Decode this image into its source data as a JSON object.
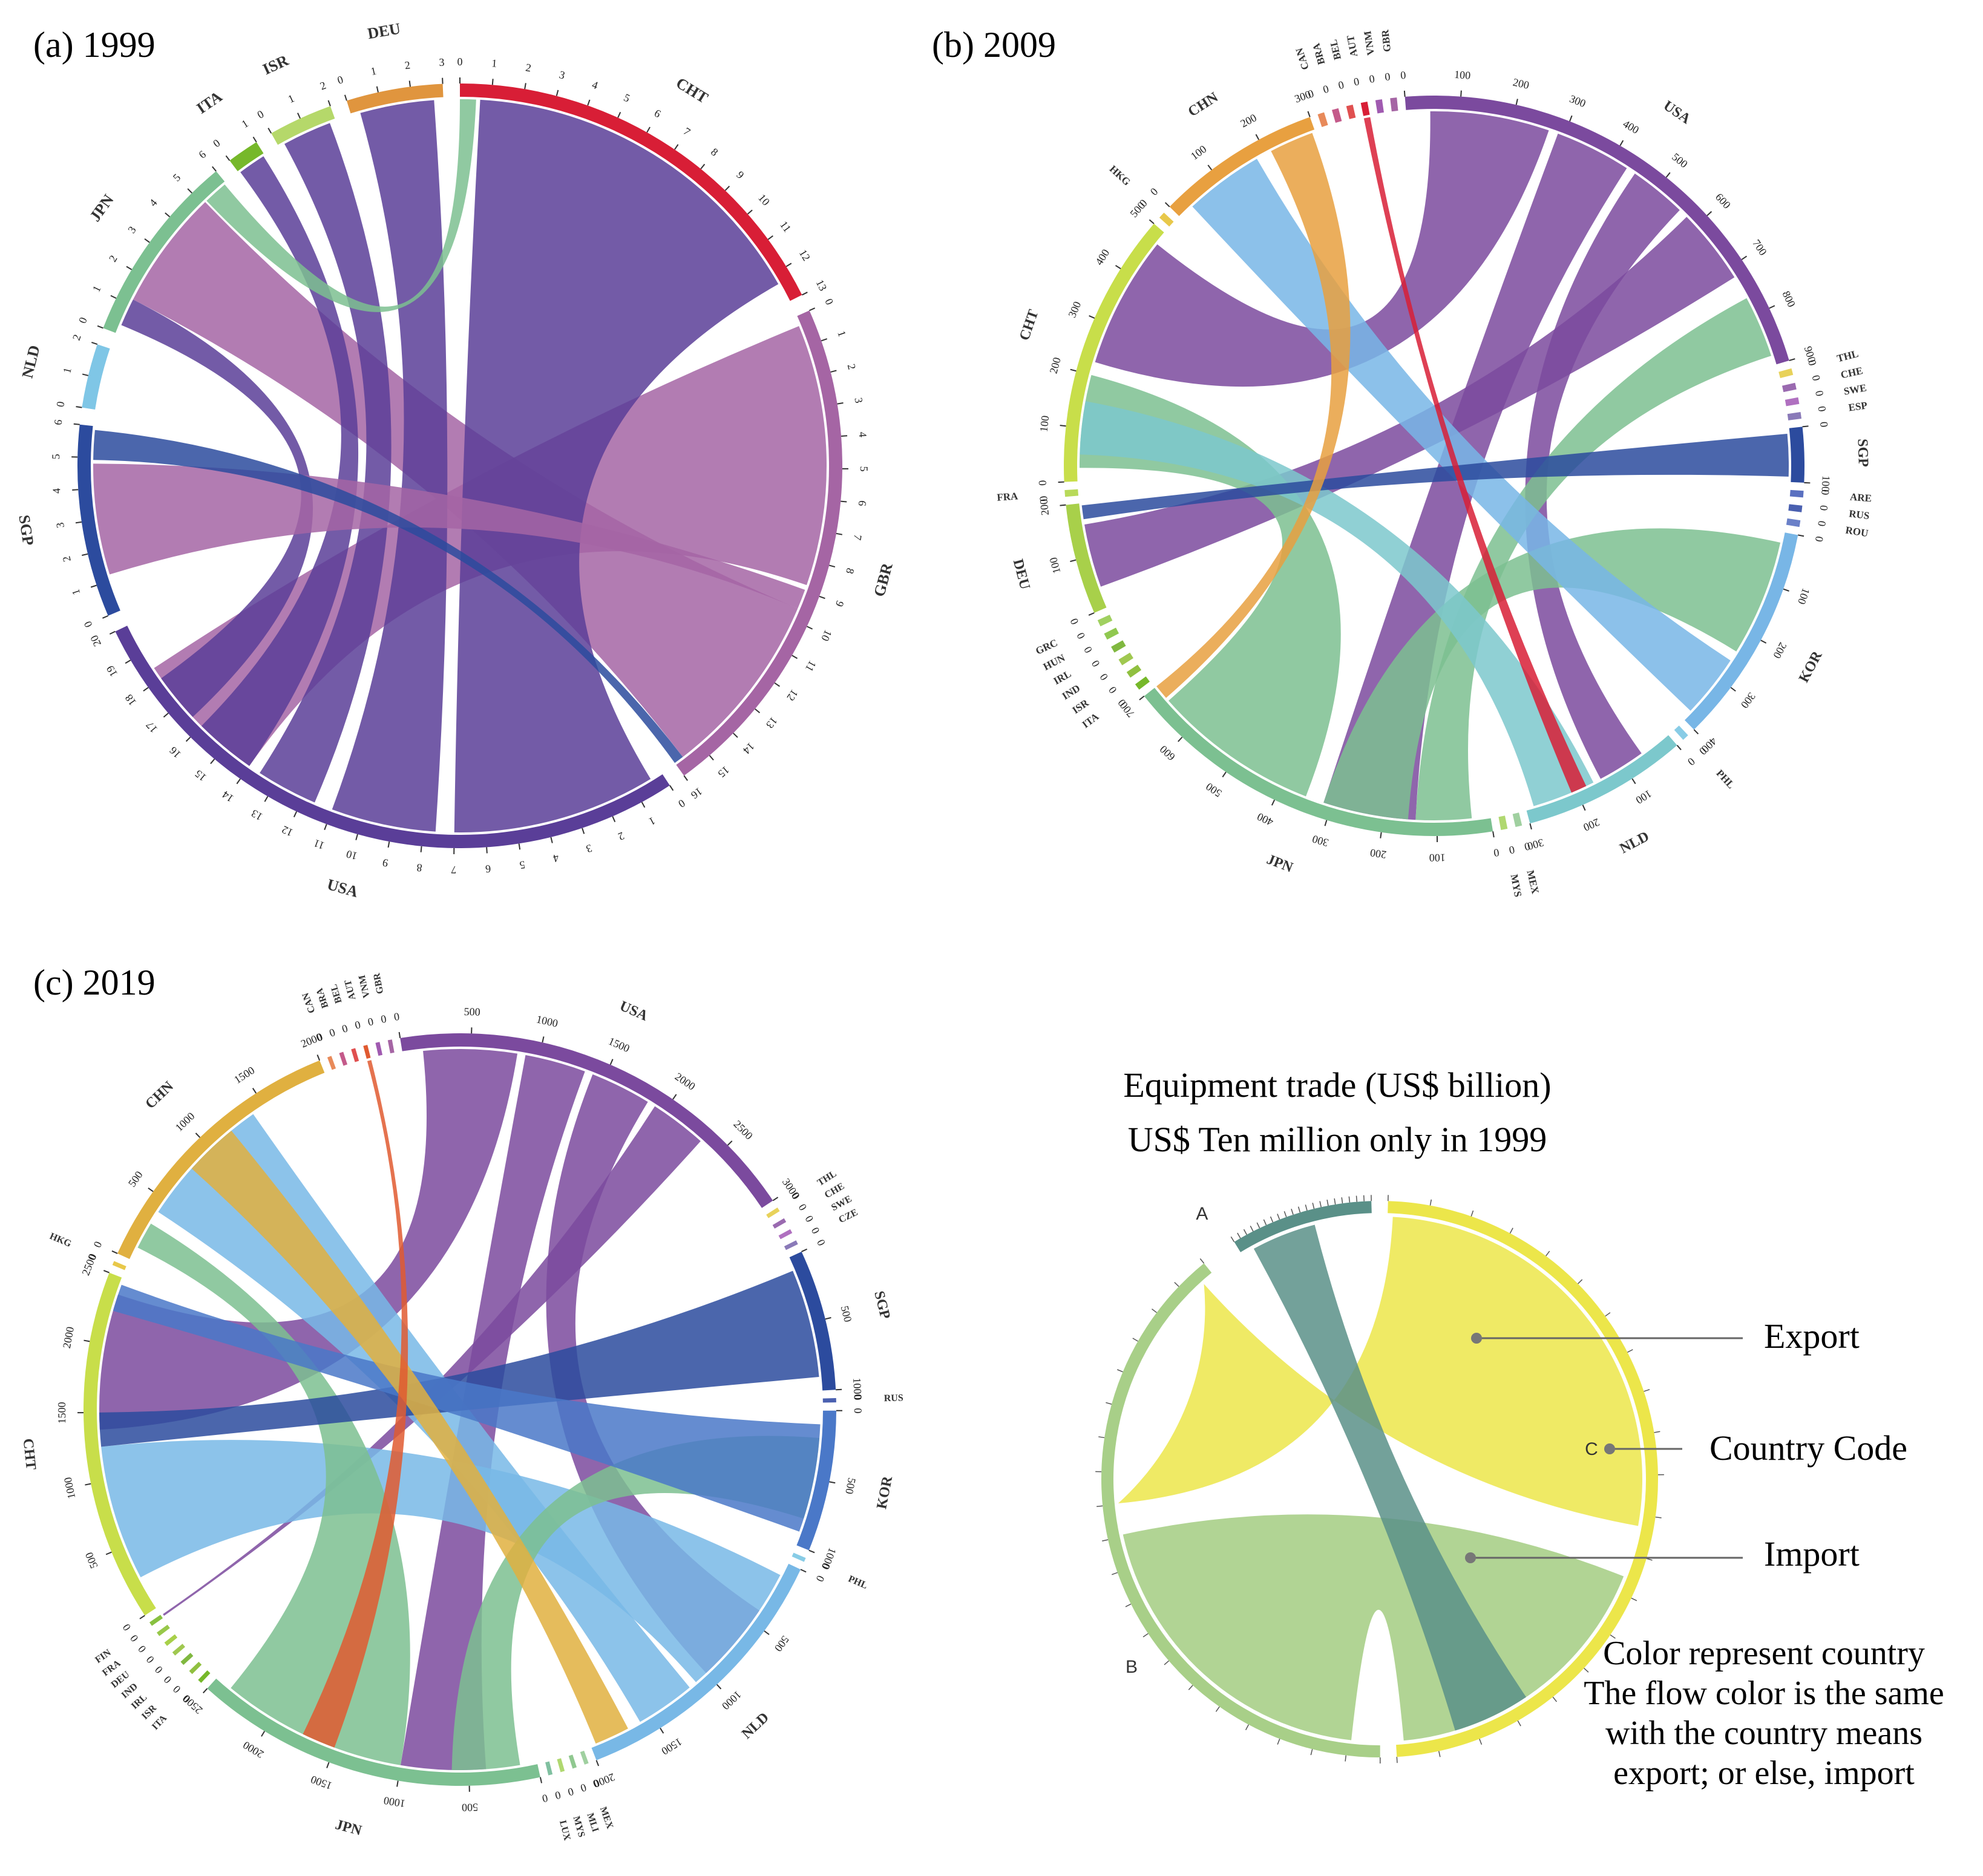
{
  "panels": [
    {
      "label": "(a) 1999",
      "segments": [
        {
          "code": "CHT",
          "color": "#d81e36",
          "max": 13,
          "step": 1
        },
        {
          "code": "GBR",
          "color": "#a565a4",
          "max": 16,
          "step": 1
        },
        {
          "code": "USA",
          "color": "#5a3e98",
          "max": 20,
          "step": 1
        },
        {
          "code": "SGP",
          "color": "#2c4b9e",
          "max": 6,
          "step": 1
        },
        {
          "code": "NLD",
          "color": "#7fc6e6",
          "max": 2,
          "step": 1
        },
        {
          "code": "JPN",
          "color": "#7cc091",
          "max": 6,
          "step": 1
        },
        {
          "code": "ITA",
          "color": "#76b82a",
          "max": 1,
          "step": 1
        },
        {
          "code": "ISR",
          "color": "#b5d86a",
          "max": 2,
          "step": 1
        },
        {
          "code": "DEU",
          "color": "#e0953e",
          "max": 3,
          "step": 1
        }
      ]
    },
    {
      "label": "(b) 2009",
      "segments": [
        {
          "code": "CAN",
          "color": "#e88a5a",
          "max": 0,
          "step": 1
        },
        {
          "code": "BRA",
          "color": "#c45a8a",
          "max": 0,
          "step": 1
        },
        {
          "code": "BEL",
          "color": "#e05050",
          "max": 0,
          "step": 1
        },
        {
          "code": "AUT",
          "color": "#d81e36",
          "max": 0,
          "step": 1
        },
        {
          "code": "VNM",
          "color": "#a05ab0",
          "max": 0,
          "step": 1
        },
        {
          "code": "GBR",
          "color": "#a565a4",
          "max": 0,
          "step": 1
        },
        {
          "code": "USA",
          "color": "#7b4a9e",
          "max": 900,
          "step": 100
        },
        {
          "code": "THL",
          "color": "#e8d25a",
          "max": 0,
          "step": 1
        },
        {
          "code": "CHE",
          "color": "#9a6ab0",
          "max": 0,
          "step": 1
        },
        {
          "code": "SWE",
          "color": "#b070c0",
          "max": 0,
          "step": 1
        },
        {
          "code": "ESP",
          "color": "#8a7ab8",
          "max": 0,
          "step": 1
        },
        {
          "code": "SGP",
          "color": "#2c4b9e",
          "max": 100,
          "step": 100
        },
        {
          "code": "ARE",
          "color": "#5a70c0",
          "max": 0,
          "step": 1
        },
        {
          "code": "RUS",
          "color": "#4a60b0",
          "max": 0,
          "step": 1
        },
        {
          "code": "ROU",
          "color": "#6a80c8",
          "max": 0,
          "step": 1
        },
        {
          "code": "KOR",
          "color": "#78b6e6",
          "max": 400,
          "step": 100
        },
        {
          "code": "PHL",
          "color": "#88cce6",
          "max": 0,
          "step": 1
        },
        {
          "code": "NLD",
          "color": "#7cc8cc",
          "max": 300,
          "step": 100
        },
        {
          "code": "MEX",
          "color": "#a0d0a0",
          "max": 0,
          "step": 1
        },
        {
          "code": "MYS",
          "color": "#b0d870",
          "max": 0,
          "step": 1
        },
        {
          "code": "JPN",
          "color": "#7cc091",
          "max": 700,
          "step": 100
        },
        {
          "code": "ITA",
          "color": "#76b82a",
          "max": 0,
          "step": 1
        },
        {
          "code": "ISR",
          "color": "#90c040",
          "max": 0,
          "step": 1
        },
        {
          "code": "IND",
          "color": "#a0c850",
          "max": 0,
          "step": 1
        },
        {
          "code": "IRL",
          "color": "#80b840",
          "max": 0,
          "step": 1
        },
        {
          "code": "HUN",
          "color": "#90c850",
          "max": 0,
          "step": 1
        },
        {
          "code": "GRC",
          "color": "#a0d060",
          "max": 0,
          "step": 1
        },
        {
          "code": "DEU",
          "color": "#a8d04a",
          "max": 200,
          "step": 100
        },
        {
          "code": "FRA",
          "color": "#b8da5a",
          "max": 0,
          "step": 1
        },
        {
          "code": "CHT",
          "color": "#c8de4a",
          "max": 500,
          "step": 100
        },
        {
          "code": "HKG",
          "color": "#e8c84a",
          "max": 0,
          "step": 1
        },
        {
          "code": "CHN",
          "color": "#e8a040",
          "max": 300,
          "step": 100
        }
      ]
    },
    {
      "label": "(c) 2019",
      "segments": [
        {
          "code": "CAN",
          "color": "#e88a5a",
          "max": 0,
          "step": 1
        },
        {
          "code": "BRA",
          "color": "#c45a8a",
          "max": 0,
          "step": 1
        },
        {
          "code": "BEL",
          "color": "#e05050",
          "max": 0,
          "step": 1
        },
        {
          "code": "AUT",
          "color": "#e05a30",
          "max": 0,
          "step": 1
        },
        {
          "code": "VNM",
          "color": "#a05ab0",
          "max": 0,
          "step": 1
        },
        {
          "code": "GBR",
          "color": "#a565a4",
          "max": 0,
          "step": 1
        },
        {
          "code": "USA",
          "color": "#7b4a9e",
          "max": 3000,
          "step": 500
        },
        {
          "code": "THL",
          "color": "#e8d25a",
          "max": 0,
          "step": 1
        },
        {
          "code": "CHE",
          "color": "#9a6ab0",
          "max": 0,
          "step": 1
        },
        {
          "code": "SWE",
          "color": "#b070c0",
          "max": 0,
          "step": 1
        },
        {
          "code": "CZE",
          "color": "#8a7ab8",
          "max": 0,
          "step": 1
        },
        {
          "code": "SGP",
          "color": "#2c4b9e",
          "max": 1000,
          "step": 500
        },
        {
          "code": "RUS",
          "color": "#4a60b0",
          "max": 0,
          "step": 1
        },
        {
          "code": "KOR",
          "color": "#4a78c8",
          "max": 1000,
          "step": 500
        },
        {
          "code": "PHL",
          "color": "#88cce6",
          "max": 0,
          "step": 1
        },
        {
          "code": "NLD",
          "color": "#78b8e6",
          "max": 2000,
          "step": 500
        },
        {
          "code": "MEX",
          "color": "#a0d0a0",
          "max": 0,
          "step": 1
        },
        {
          "code": "MLI",
          "color": "#90c890",
          "max": 0,
          "step": 1
        },
        {
          "code": "MYS",
          "color": "#b0d870",
          "max": 0,
          "step": 1
        },
        {
          "code": "LUX",
          "color": "#80c0a0",
          "max": 0,
          "step": 1
        },
        {
          "code": "JPN",
          "color": "#7cc091",
          "max": 2500,
          "step": 500
        },
        {
          "code": "ITA",
          "color": "#76b82a",
          "max": 0,
          "step": 1
        },
        {
          "code": "ISR",
          "color": "#90c040",
          "max": 0,
          "step": 1
        },
        {
          "code": "IRL",
          "color": "#80b840",
          "max": 0,
          "step": 1
        },
        {
          "code": "IND",
          "color": "#a0c850",
          "max": 0,
          "step": 1
        },
        {
          "code": "DEU",
          "color": "#a8d04a",
          "max": 0,
          "step": 1
        },
        {
          "code": "FRA",
          "color": "#98c84a",
          "max": 0,
          "step": 1
        },
        {
          "code": "FIN",
          "color": "#88c040",
          "max": 0,
          "step": 1
        },
        {
          "code": "CHT",
          "color": "#c8de4a",
          "max": 2500,
          "step": 500
        },
        {
          "code": "HKG",
          "color": "#e8c84a",
          "max": 0,
          "step": 1
        },
        {
          "code": "CHN",
          "color": "#e0b040",
          "max": 2000,
          "step": 500
        }
      ]
    }
  ],
  "legend": {
    "title_line1": "Equipment trade (US$ billion)",
    "title_line2": "US$ Ten million only in 1999",
    "export_label": "Export",
    "country_code_label": "Country Code",
    "import_label": "Import",
    "note_lines": [
      "Color represent country",
      "The flow color is the same",
      "with the country means",
      "export; or else, import"
    ],
    "example_codes": [
      "A",
      "B",
      "C"
    ],
    "example_colors": {
      "A": "#5a9088",
      "B": "#a8cf88",
      "C": "#ece64a"
    }
  }
}
